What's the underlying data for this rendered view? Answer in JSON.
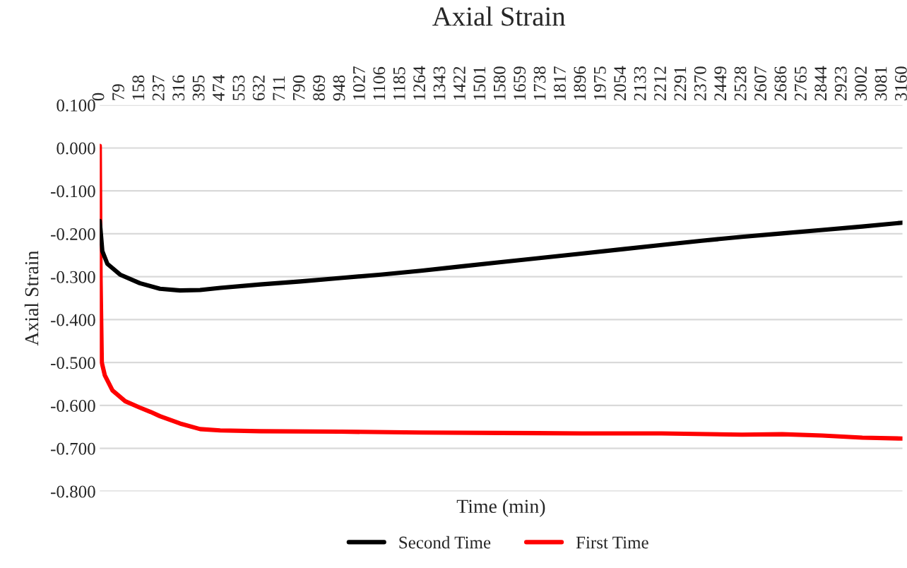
{
  "chart_data": {
    "type": "line",
    "title": "Axial Strain",
    "xlabel": "Time (min)",
    "ylabel": "Axial Strain",
    "xlim": [
      0,
      3160
    ],
    "xticks": [
      0,
      79,
      158,
      237,
      316,
      395,
      474,
      553,
      632,
      711,
      790,
      869,
      948,
      1027,
      1106,
      1185,
      1264,
      1343,
      1422,
      1501,
      1580,
      1659,
      1738,
      1817,
      1896,
      1975,
      2054,
      2133,
      2212,
      2291,
      2370,
      2449,
      2528,
      2607,
      2686,
      2765,
      2844,
      2923,
      3002,
      3081,
      3160
    ],
    "ylim": [
      -0.8,
      0.1
    ],
    "yticks": [
      {
        "value": 0.1,
        "label": "0.100"
      },
      {
        "value": 0.0,
        "label": "0.000"
      },
      {
        "value": -0.1,
        "label": "-0.100"
      },
      {
        "value": -0.2,
        "label": "-0.200"
      },
      {
        "value": -0.3,
        "label": "-0.300"
      },
      {
        "value": -0.4,
        "label": "-0.400"
      },
      {
        "value": -0.5,
        "label": "-0.500"
      },
      {
        "value": -0.6,
        "label": "-0.600"
      },
      {
        "value": -0.7,
        "label": "-0.700"
      },
      {
        "value": -0.8,
        "label": "-0.800"
      }
    ],
    "grid": "y",
    "legend": "bottom",
    "marker": "none",
    "line_style": "solid",
    "series": [
      {
        "name": "Second Time",
        "color": "#000000",
        "x": [
          0,
          10,
          30,
          80,
          158,
          237,
          316,
          395,
          474,
          632,
          790,
          948,
          1106,
          1264,
          1422,
          1580,
          1738,
          1896,
          2054,
          2212,
          2370,
          2528,
          2686,
          2844,
          3002,
          3160
        ],
        "values": [
          -0.17,
          -0.24,
          -0.27,
          -0.295,
          -0.315,
          -0.328,
          -0.332,
          -0.331,
          -0.326,
          -0.318,
          -0.311,
          -0.303,
          -0.295,
          -0.286,
          -0.276,
          -0.266,
          -0.256,
          -0.246,
          -0.236,
          -0.226,
          -0.216,
          -0.207,
          -0.199,
          -0.191,
          -0.183,
          -0.174
        ]
      },
      {
        "name": "First Time",
        "color": "#ff0000",
        "x": [
          0,
          3,
          8,
          20,
          50,
          100,
          158,
          200,
          237,
          316,
          395,
          474,
          632,
          948,
          1264,
          1580,
          1896,
          2212,
          2528,
          2686,
          2844,
          3002,
          3160
        ],
        "values": [
          0.005,
          -0.3,
          -0.5,
          -0.53,
          -0.565,
          -0.59,
          -0.605,
          -0.615,
          -0.625,
          -0.642,
          -0.655,
          -0.658,
          -0.66,
          -0.661,
          -0.663,
          -0.664,
          -0.665,
          -0.665,
          -0.668,
          -0.667,
          -0.67,
          -0.675,
          -0.677
        ]
      }
    ]
  }
}
